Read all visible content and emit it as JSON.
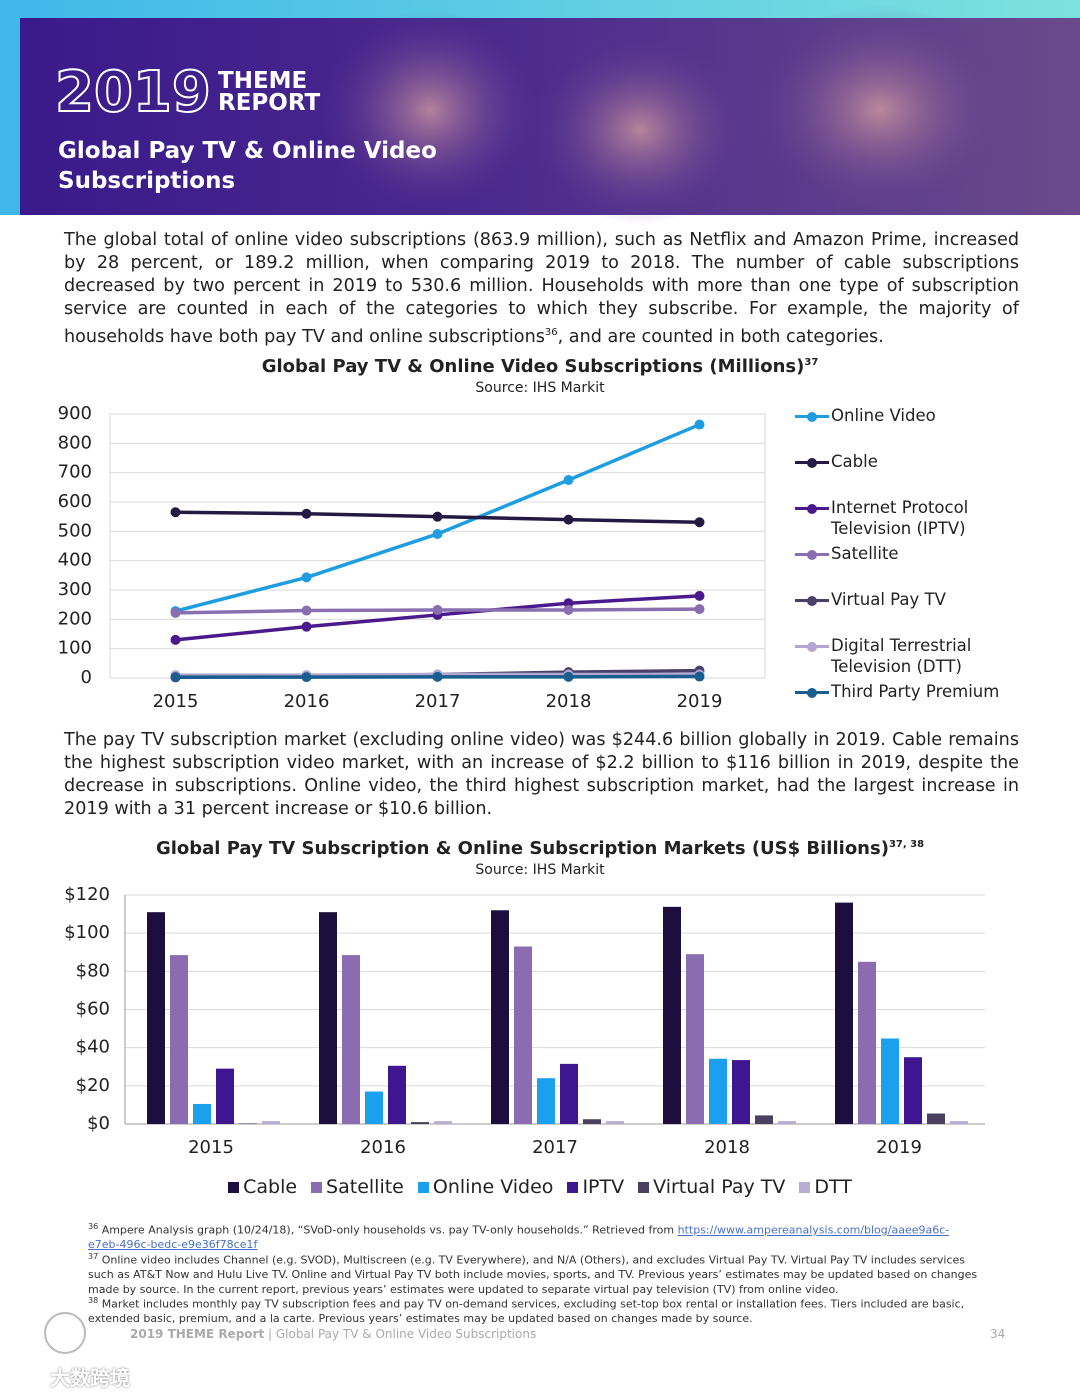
{
  "header": {
    "logo_year": "2019",
    "logo_word": "THEME REPORT",
    "title": "Global Pay TV & Online Video Subscriptions"
  },
  "paragraphs": [
    {
      "text": "The global total of online video subscriptions (863.9 million), such as Netflix and Amazon Prime, increased by 28 percent, or 189.2 million, when comparing 2019 to 2018. The number of cable subscriptions decreased by two percent in 2019 to 530.6 million. Households with more than one type of subscription service are counted in each of the categories to which they subscribe. For example, the majority of households have both pay TV and online subscriptions",
      "note": "36",
      "tail": ", and are counted in both categories."
    },
    {
      "text": "The pay TV subscription market (excluding online video) was $244.6 billion globally in 2019. Cable remains the highest subscription video market, with an increase of $2.2 billion to $116 billion in 2019, despite the decrease in subscriptions. Online video, the third highest subscription market, had the largest increase in 2019 with a 31 percent increase or $10.6 billion."
    }
  ],
  "chart_data": [
    {
      "type": "line",
      "title": "Global Pay TV & Online Video Subscriptions (Millions)",
      "title_note": "37",
      "subtitle": "Source: IHS Markit",
      "categories": [
        "2015",
        "2016",
        "2017",
        "2018",
        "2019"
      ],
      "series": [
        {
          "name": "Online Video",
          "color": "#1e9de0",
          "values": [
            228,
            343,
            491,
            675,
            864
          ]
        },
        {
          "name": "Cable",
          "color": "#231942",
          "values": [
            565,
            560,
            550,
            540,
            531
          ]
        },
        {
          "name": "Internet Protocol Television (IPTV)",
          "color": "#4a1a8c",
          "values": [
            130,
            175,
            215,
            255,
            280
          ]
        },
        {
          "name": "Satellite",
          "color": "#8a6fb0",
          "values": [
            222,
            230,
            232,
            232,
            235
          ]
        },
        {
          "name": "Virtual Pay TV",
          "color": "#4a3f6b",
          "values": [
            2,
            5,
            12,
            20,
            25
          ]
        },
        {
          "name": "Digital Terrestrial Television (DTT)",
          "color": "#b3a6d0",
          "values": [
            10,
            10,
            12,
            12,
            12
          ]
        },
        {
          "name": "Third Party Premium",
          "color": "#1a5d8f",
          "values": [
            3,
            3,
            4,
            4,
            5
          ]
        }
      ],
      "ylim": [
        0,
        900
      ],
      "yticks": [
        0,
        100,
        200,
        300,
        400,
        500,
        600,
        700,
        800,
        900
      ],
      "grid": true,
      "legend": "right"
    },
    {
      "type": "bar",
      "title": "Global Pay TV Subscription & Online Subscription Markets (US$ Billions)",
      "title_note": "37, 38",
      "subtitle": "Source: IHS Markit",
      "categories": [
        "2015",
        "2016",
        "2017",
        "2018",
        "2019"
      ],
      "series": [
        {
          "name": "Cable",
          "color": "#1c0f3d",
          "values": [
            111,
            111,
            112,
            113.8,
            116
          ]
        },
        {
          "name": "Satellite",
          "color": "#8c6cb0",
          "values": [
            88.5,
            88.5,
            93,
            89,
            85
          ]
        },
        {
          "name": "Online Video",
          "color": "#1aa0ef",
          "values": [
            10.5,
            17,
            24,
            34.2,
            44.8
          ]
        },
        {
          "name": "IPTV",
          "color": "#3e168f",
          "values": [
            29,
            30.5,
            31.5,
            33.5,
            35
          ]
        },
        {
          "name": "Virtual Pay TV",
          "color": "#4c4060",
          "values": [
            0.3,
            1,
            2.5,
            4.5,
            5.5
          ]
        },
        {
          "name": "DTT",
          "color": "#b9acd3",
          "values": [
            1.5,
            1.5,
            1.5,
            1.5,
            1.5
          ]
        }
      ],
      "ylim": [
        0,
        120
      ],
      "yticks": [
        {
          "value": 0,
          "label": "$0"
        },
        {
          "value": 20,
          "label": "$20"
        },
        {
          "value": 40,
          "label": "$40"
        },
        {
          "value": 60,
          "label": "$60"
        },
        {
          "value": 80,
          "label": "$80"
        },
        {
          "value": 100,
          "label": "$100"
        },
        {
          "value": 120,
          "label": "$120"
        }
      ],
      "grid": true,
      "legend": "bottom"
    }
  ],
  "footnotes": [
    {
      "number": "36",
      "text": "Ampere Analysis graph (10/24/18), “SVoD-only households vs. pay TV-only households.” Retrieved from ",
      "link": "https://www.ampereanalysis.com/blog/aaee9a6c-e7eb-496c-bedc-e9e36f78ce1f"
    },
    {
      "number": "37",
      "text": "Online video includes Channel (e.g. SVOD), Multiscreen (e.g. TV Everywhere), and N/A (Others), and excludes Virtual Pay TV. Virtual Pay TV includes services such as AT&T Now and Hulu Live TV. Online and Virtual Pay TV both include movies, sports, and TV. Previous years’ estimates may be updated based on changes made by source. In the current report, previous years’ estimates were updated to separate virtual pay television (TV) from online video."
    },
    {
      "number": "38",
      "text": "Market includes monthly pay TV subscription fees and pay TV on-demand services, excluding set-top box rental or installation fees. Tiers included are basic, extended basic, premium, and a la carte. Previous years’ estimates may be updated based on changes made by source."
    }
  ],
  "footer": {
    "report": "2019 THEME Report",
    "section": "Global Pay TV & Online Video Subscriptions",
    "page": "34"
  },
  "watermark": "大数跨境"
}
